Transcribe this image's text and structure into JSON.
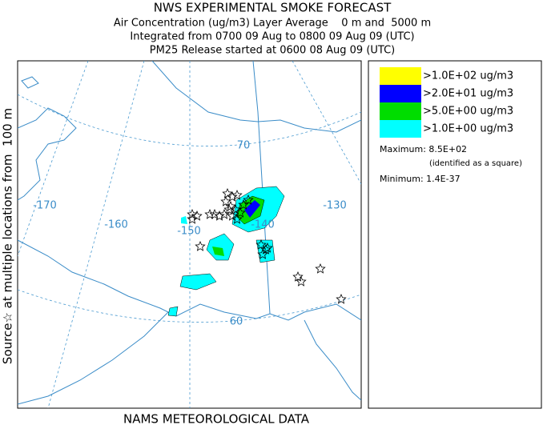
{
  "header": {
    "title": "NWS EXPERIMENTAL SMOKE FORECAST",
    "lines": [
      "Air Concentration (ug/m3) Layer Average    0 m and  5000 m",
      "Integrated from 0700 09 Aug to 0800 09 Aug 09 (UTC)",
      "PM25 Release started at 0600 08 Aug 09 (UTC)"
    ]
  },
  "side_label": "Source☆ at multiple locations from  100 m",
  "map": {
    "grid_labels": [
      {
        "text": "-170"
      },
      {
        "text": "-160"
      },
      {
        "text": "-150"
      },
      {
        "text": "-140"
      },
      {
        "text": "-130"
      },
      {
        "text": "70"
      },
      {
        "text": "60"
      }
    ]
  },
  "legend": {
    "entries": [
      {
        "label": ">1.0E+02 ug/m3",
        "color": "#ffff00"
      },
      {
        "label": ">2.0E+01 ug/m3",
        "color": "#0000ff"
      },
      {
        "label": ">5.0E+00 ug/m3",
        "color": "#00dd00"
      },
      {
        "label": ">1.0E+00 ug/m3",
        "color": "#00ffff"
      }
    ],
    "maximum": "Maximum: 8.5E+02",
    "maximum_note": "(identified as a square)",
    "minimum": "Minimum: 1.4E-37"
  },
  "footer": "NAMS METEOROLOGICAL DATA"
}
